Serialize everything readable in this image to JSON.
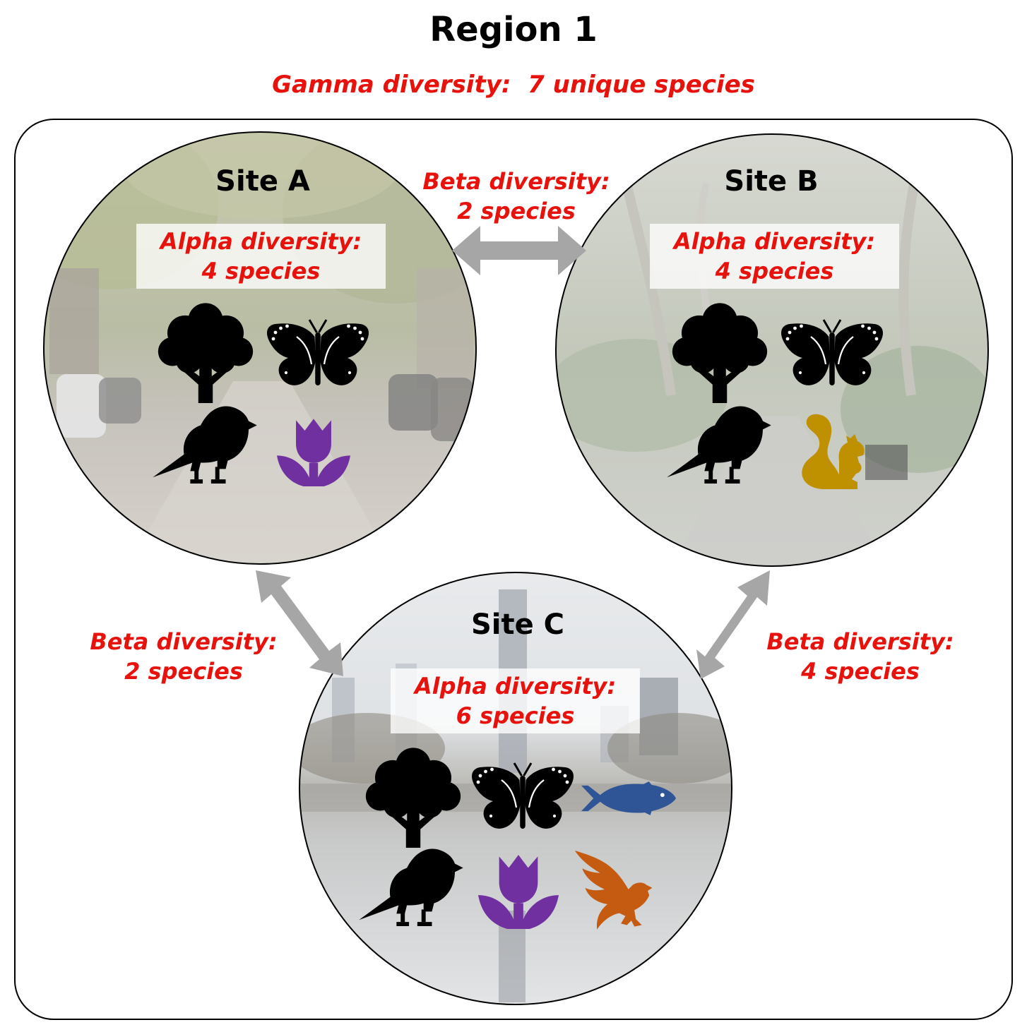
{
  "title": "Region 1",
  "gamma": {
    "label": "Gamma diversity:",
    "value": "7 unique species"
  },
  "sites": [
    {
      "label": "Site A",
      "alpha_label": "Alpha diversity:",
      "alpha_value": "4 species",
      "species": [
        "tree-icon",
        "butterfly-icon",
        "bird-icon",
        "tulip-icon"
      ]
    },
    {
      "label": "Site B",
      "alpha_label": "Alpha diversity:",
      "alpha_value": "4 species",
      "species": [
        "tree-icon",
        "butterfly-icon",
        "bird-icon",
        "squirrel-icon"
      ]
    },
    {
      "label": "Site C",
      "alpha_label": "Alpha diversity:",
      "alpha_value": "6 species",
      "species": [
        "tree-icon",
        "butterfly-icon",
        "fish-icon",
        "bird-icon",
        "tulip-icon",
        "eagle-icon"
      ]
    }
  ],
  "beta": {
    "ab": {
      "label": "Beta diversity:",
      "value": "2 species"
    },
    "ac": {
      "label": "Beta diversity:",
      "value": "2 species"
    },
    "bc": {
      "label": "Beta diversity:",
      "value": "4 species"
    }
  },
  "colors": {
    "text_red": "#e8120c",
    "tree": "#000000",
    "butterfly": "#000000",
    "bird": "#000000",
    "tulip": "#7030a0",
    "squirrel": "#bf9000",
    "fish": "#2f5597",
    "eagle": "#c55a11",
    "arrow": "#a6a6a6"
  }
}
